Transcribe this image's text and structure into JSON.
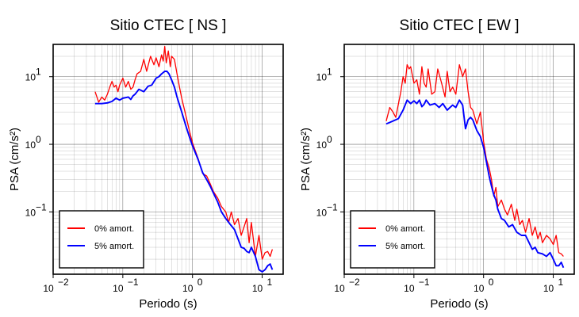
{
  "chart_data": [
    {
      "type": "line",
      "title": "Sitio CTEC [ NS ]",
      "xlabel": "Periodo (s)",
      "ylabel": "PSA (cm/s²)",
      "xscale": "log",
      "yscale": "log",
      "xlim": [
        0.01,
        20
      ],
      "ylim": [
        0.012,
        30
      ],
      "x_ticks": [
        "10",
        "10",
        "10",
        "10"
      ],
      "x_tick_exponents": [
        "−2",
        "−1",
        "0",
        "1"
      ],
      "y_ticks": [
        "10",
        "10",
        "10"
      ],
      "y_tick_exponents": [
        "−1",
        "0",
        "1"
      ],
      "grid": true,
      "legend_position": "bottom-left",
      "series": [
        {
          "name": "0% amort.",
          "color": "#ff0000",
          "x": [
            0.04,
            0.045,
            0.05,
            0.055,
            0.06,
            0.065,
            0.07,
            0.075,
            0.08,
            0.085,
            0.09,
            0.1,
            0.11,
            0.12,
            0.13,
            0.14,
            0.15,
            0.16,
            0.18,
            0.2,
            0.22,
            0.25,
            0.28,
            0.3,
            0.33,
            0.36,
            0.38,
            0.4,
            0.42,
            0.45,
            0.48,
            0.5,
            0.55,
            0.6,
            0.65,
            0.7,
            0.8,
            0.9,
            1.0,
            1.2,
            1.4,
            1.6,
            1.8,
            2.0,
            2.3,
            2.6,
            3.0,
            3.3,
            3.6,
            4.0,
            4.5,
            5.0,
            5.5,
            6.0,
            6.5,
            7.0,
            8.0,
            9.0,
            10.0,
            11.0,
            12.0,
            13.0,
            14.0
          ],
          "y": [
            6.0,
            4.2,
            5.0,
            4.5,
            5.5,
            7.0,
            8.5,
            7.0,
            7.5,
            6.0,
            7.5,
            9.5,
            7.0,
            8.5,
            6.5,
            7.0,
            9.0,
            11.0,
            12.0,
            18.0,
            12.0,
            20.0,
            15.0,
            19.0,
            14.0,
            21.0,
            17.0,
            28.0,
            16.0,
            24.0,
            14.0,
            20.0,
            18.0,
            11.0,
            7.0,
            4.8,
            2.7,
            1.6,
            1.05,
            0.62,
            0.37,
            0.34,
            0.26,
            0.2,
            0.16,
            0.12,
            0.1,
            0.07,
            0.1,
            0.065,
            0.08,
            0.045,
            0.06,
            0.08,
            0.035,
            0.07,
            0.022,
            0.045,
            0.02,
            0.025,
            0.026,
            0.022,
            0.028
          ]
        },
        {
          "name": "5% amort.",
          "color": "#0000ff",
          "x": [
            0.04,
            0.05,
            0.06,
            0.07,
            0.08,
            0.09,
            0.1,
            0.11,
            0.12,
            0.13,
            0.14,
            0.15,
            0.17,
            0.2,
            0.23,
            0.26,
            0.3,
            0.33,
            0.36,
            0.4,
            0.43,
            0.46,
            0.5,
            0.55,
            0.6,
            0.7,
            0.8,
            0.9,
            1.0,
            1.2,
            1.4,
            1.6,
            1.8,
            2.0,
            2.3,
            2.6,
            3.0,
            3.5,
            4.0,
            4.5,
            5.0,
            5.5,
            6.0,
            6.5,
            7.0,
            8.0,
            9.0,
            10.0,
            11.0,
            12.0,
            13.0,
            14.0
          ],
          "y": [
            4.0,
            4.0,
            4.1,
            4.3,
            4.8,
            4.5,
            4.8,
            4.9,
            5.0,
            4.6,
            5.2,
            5.5,
            6.5,
            6.0,
            7.2,
            7.5,
            9.5,
            10.0,
            11.0,
            12.0,
            12.0,
            11.0,
            9.0,
            7.0,
            5.0,
            3.0,
            1.9,
            1.3,
            0.95,
            0.6,
            0.38,
            0.3,
            0.24,
            0.19,
            0.14,
            0.1,
            0.08,
            0.065,
            0.055,
            0.04,
            0.03,
            0.029,
            0.026,
            0.025,
            0.03,
            0.022,
            0.014,
            0.013,
            0.014,
            0.016,
            0.017,
            0.014
          ]
        }
      ]
    },
    {
      "type": "line",
      "title": "Sitio CTEC [ EW ]",
      "xlabel": "Periodo (s)",
      "ylabel": "PSA (cm/s²)",
      "xscale": "log",
      "yscale": "log",
      "xlim": [
        0.01,
        20
      ],
      "ylim": [
        0.012,
        30
      ],
      "x_ticks": [
        "10",
        "10",
        "10",
        "10"
      ],
      "x_tick_exponents": [
        "−2",
        "−1",
        "0",
        "1"
      ],
      "y_ticks": [
        "10",
        "10",
        "10"
      ],
      "y_tick_exponents": [
        "−1",
        "0",
        "1"
      ],
      "grid": true,
      "legend_position": "bottom-left",
      "series": [
        {
          "name": "0% amort.",
          "color": "#ff0000",
          "x": [
            0.04,
            0.045,
            0.05,
            0.055,
            0.06,
            0.065,
            0.07,
            0.075,
            0.08,
            0.085,
            0.09,
            0.1,
            0.11,
            0.12,
            0.13,
            0.14,
            0.15,
            0.16,
            0.18,
            0.2,
            0.22,
            0.25,
            0.28,
            0.3,
            0.33,
            0.36,
            0.4,
            0.45,
            0.5,
            0.55,
            0.6,
            0.65,
            0.7,
            0.8,
            0.9,
            1.0,
            1.1,
            1.2,
            1.3,
            1.4,
            1.5,
            1.6,
            1.8,
            2.0,
            2.2,
            2.5,
            2.8,
            3.0,
            3.3,
            3.6,
            4.0,
            4.5,
            5.0,
            5.5,
            6.0,
            6.5,
            7.0,
            8.0,
            9.0,
            10.0,
            11.0,
            12.0,
            13.0,
            14.0
          ],
          "y": [
            2.2,
            3.5,
            3.0,
            2.5,
            4.0,
            6.0,
            10.0,
            8.0,
            15.0,
            13.0,
            14.0,
            8.0,
            9.0,
            5.5,
            14.0,
            8.0,
            7.0,
            13.0,
            5.5,
            6.0,
            13.0,
            8.0,
            5.0,
            12.0,
            6.0,
            7.0,
            5.5,
            15.0,
            10.0,
            13.0,
            6.0,
            3.5,
            3.2,
            2.0,
            3.0,
            1.1,
            0.6,
            0.45,
            0.3,
            0.17,
            0.23,
            0.12,
            0.15,
            0.11,
            0.09,
            0.13,
            0.075,
            0.11,
            0.065,
            0.075,
            0.05,
            0.08,
            0.045,
            0.06,
            0.04,
            0.05,
            0.035,
            0.045,
            0.04,
            0.033,
            0.045,
            0.025,
            0.024,
            0.022
          ]
        },
        {
          "name": "5% amort.",
          "color": "#0000ff",
          "x": [
            0.04,
            0.05,
            0.06,
            0.07,
            0.08,
            0.09,
            0.1,
            0.11,
            0.12,
            0.13,
            0.14,
            0.15,
            0.17,
            0.2,
            0.23,
            0.26,
            0.3,
            0.33,
            0.36,
            0.4,
            0.45,
            0.5,
            0.55,
            0.6,
            0.65,
            0.7,
            0.8,
            0.9,
            1.0,
            1.1,
            1.2,
            1.3,
            1.4,
            1.5,
            1.6,
            1.8,
            2.0,
            2.3,
            2.6,
            3.0,
            3.5,
            4.0,
            4.5,
            5.0,
            5.5,
            6.0,
            7.0,
            8.0,
            9.0,
            10.0,
            11.0,
            12.0,
            13.0,
            14.0
          ],
          "y": [
            2.0,
            2.2,
            2.4,
            3.2,
            4.5,
            4.0,
            4.4,
            4.0,
            4.5,
            3.6,
            3.9,
            4.5,
            3.8,
            4.0,
            3.5,
            4.0,
            3.2,
            3.5,
            3.8,
            3.5,
            4.5,
            3.8,
            1.7,
            2.3,
            2.5,
            2.3,
            1.6,
            1.3,
            0.9,
            0.55,
            0.34,
            0.24,
            0.18,
            0.15,
            0.11,
            0.08,
            0.075,
            0.06,
            0.065,
            0.05,
            0.045,
            0.045,
            0.035,
            0.028,
            0.03,
            0.025,
            0.024,
            0.022,
            0.025,
            0.02,
            0.016,
            0.016,
            0.018,
            0.015
          ]
        }
      ]
    }
  ]
}
